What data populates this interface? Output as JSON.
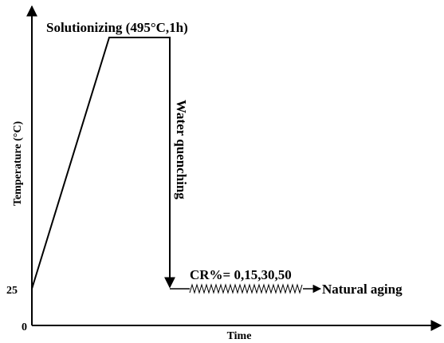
{
  "y_axis_label": "Temperature (°C)",
  "x_axis_label": "Time",
  "y_labels": [
    "25",
    "0"
  ],
  "steps": {
    "solutionizing": "Solutionizing (495°C,1h)",
    "quenching": "Water quenching",
    "cold_rolling": "CR%= 0,15,30,50",
    "aging": "Natural aging"
  }
}
